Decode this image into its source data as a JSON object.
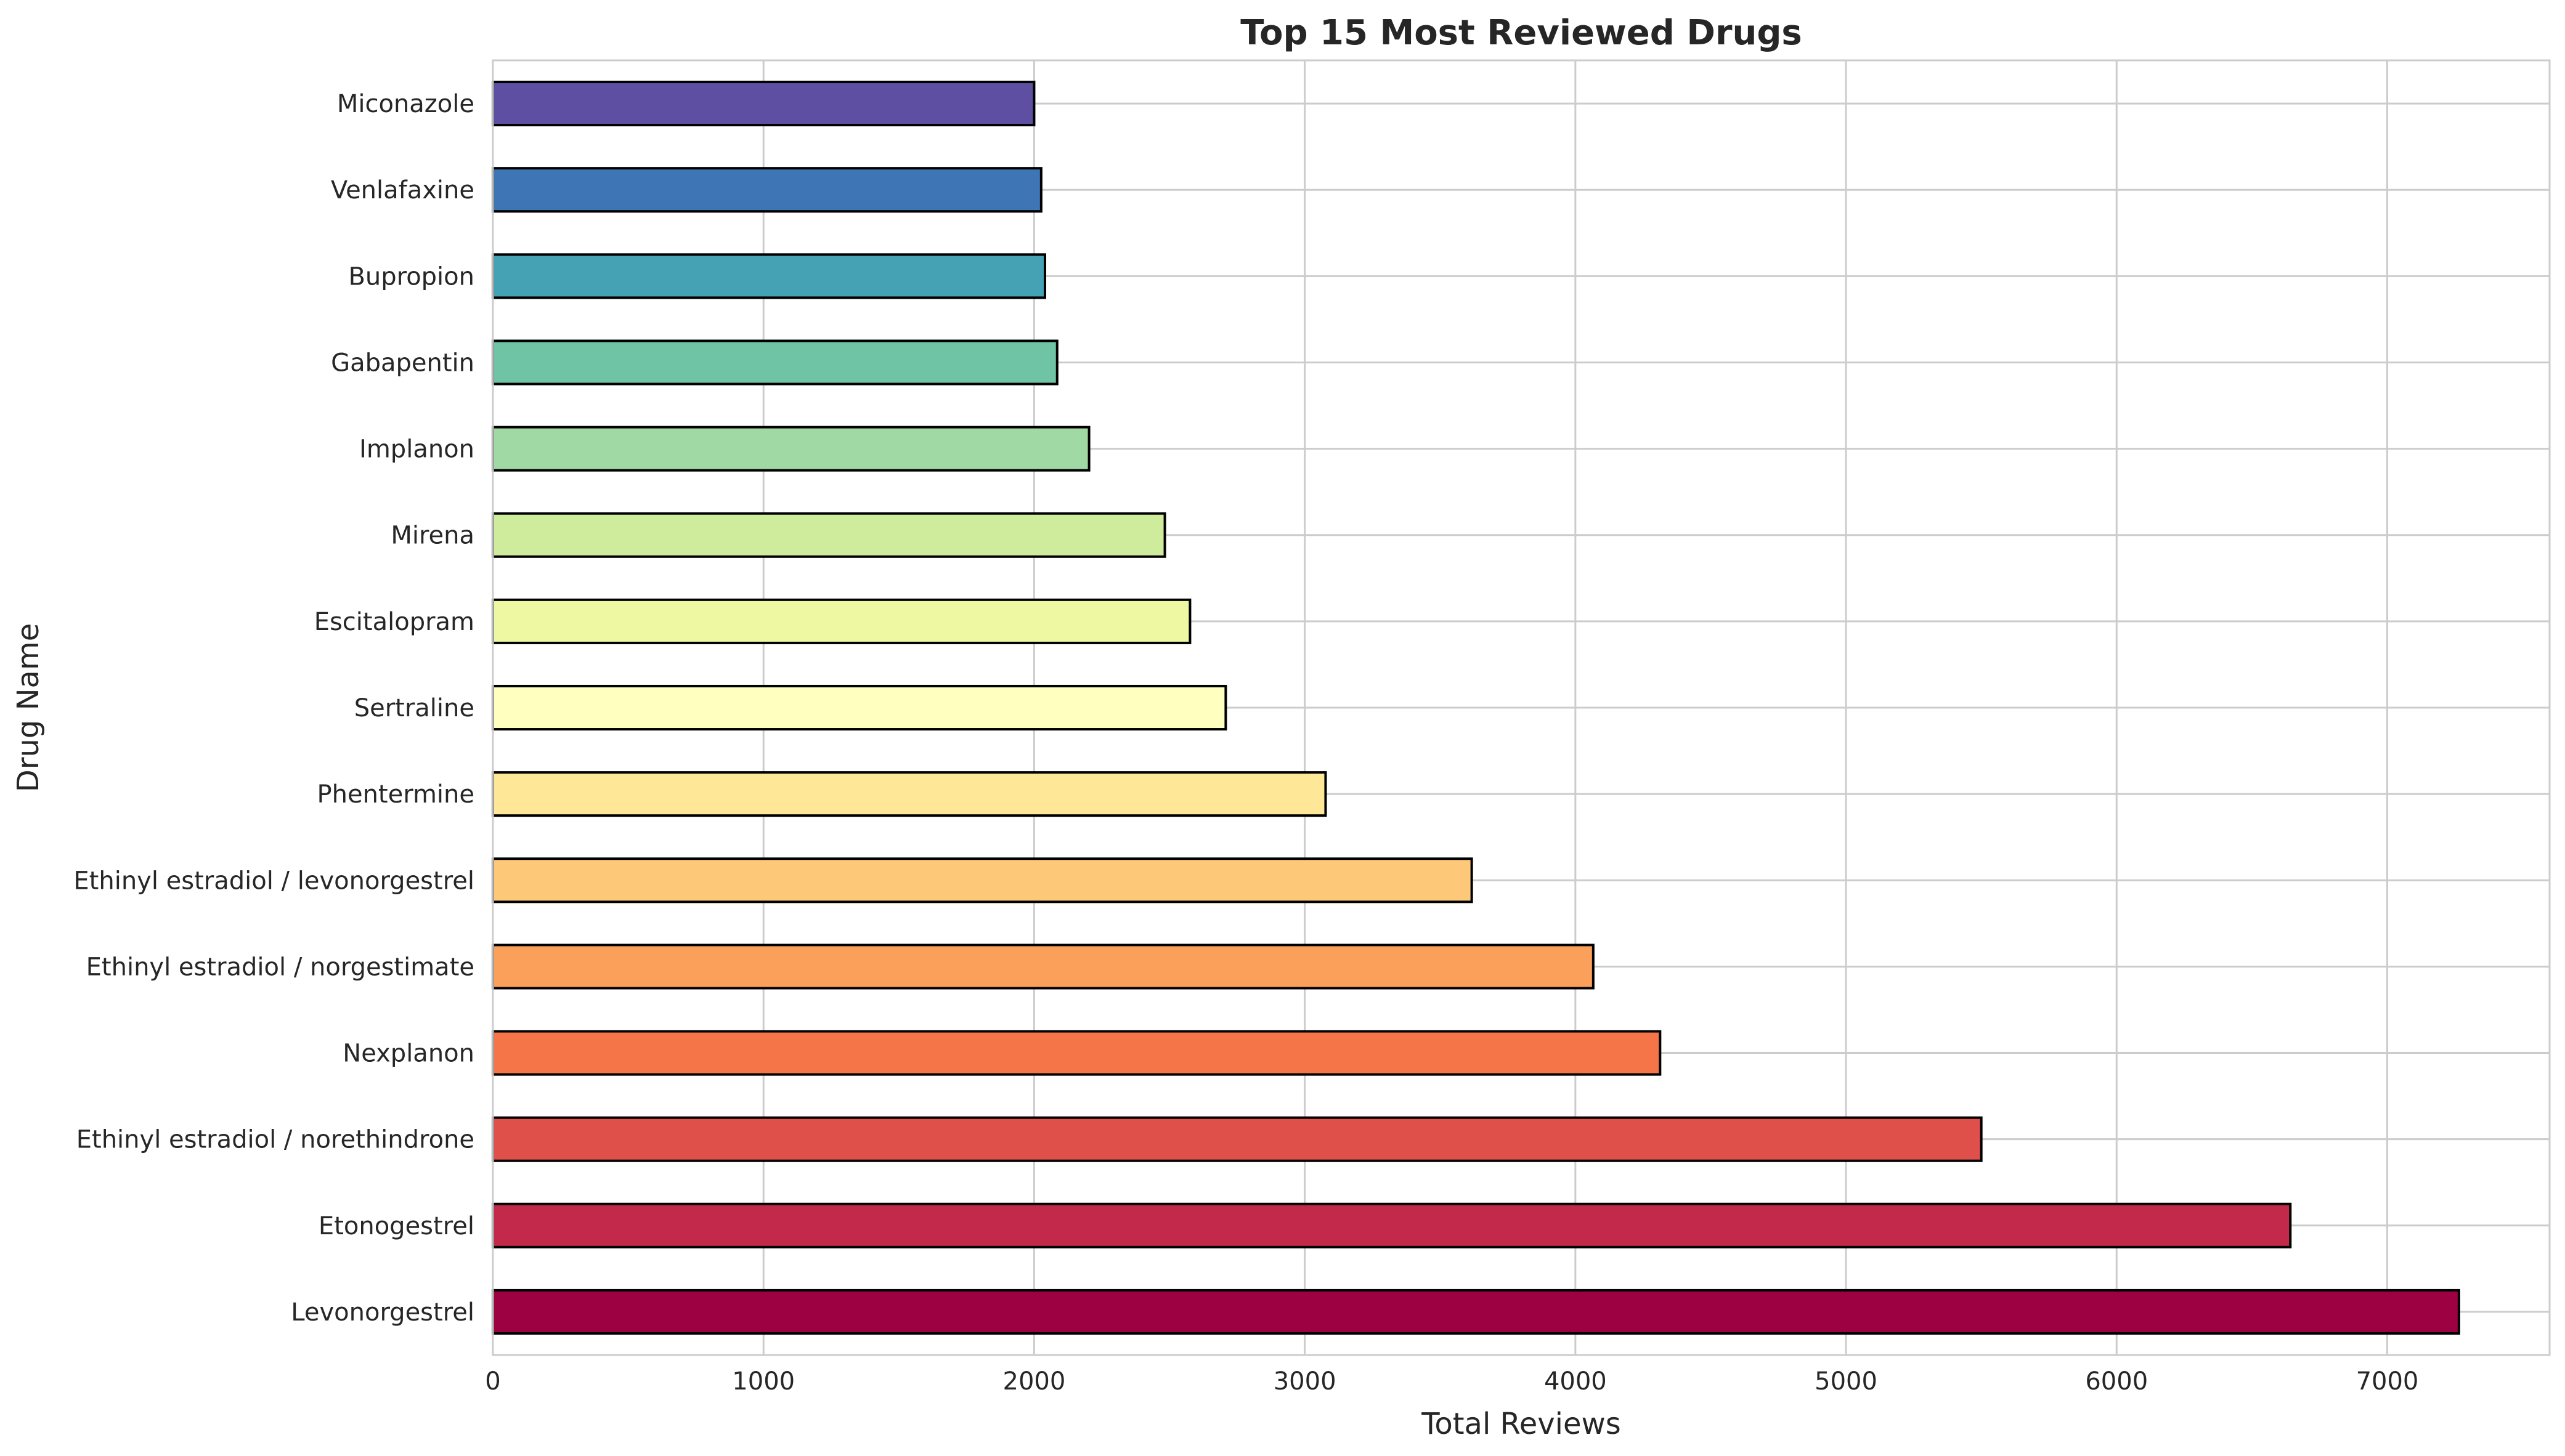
{
  "chart_data": {
    "type": "bar",
    "orientation": "horizontal",
    "title": "Top 15 Most Reviewed Drugs",
    "xlabel": "Total Reviews",
    "ylabel": "Drug Name",
    "xlim": [
      0,
      7600
    ],
    "xticks": [
      0,
      1000,
      2000,
      3000,
      4000,
      5000,
      6000,
      7000
    ],
    "grid": true,
    "categories": [
      "Levonorgestrel",
      "Etonogestrel",
      "Ethinyl estradiol / norethindrone",
      "Nexplanon",
      "Ethinyl estradiol / norgestimate",
      "Ethinyl estradiol / levonorgestrel",
      "Phentermine",
      "Sertraline",
      "Escitalopram",
      "Mirena",
      "Implanon",
      "Gabapentin",
      "Bupropion",
      "Venlafaxine",
      "Miconazole"
    ],
    "values": [
      7265,
      6642,
      5500,
      4313,
      4066,
      3617,
      3077,
      2708,
      2576,
      2483,
      2203,
      2085,
      2040,
      2026,
      2000
    ],
    "colors": [
      "#9e0142",
      "#c2294a",
      "#e0504b",
      "#f57448",
      "#fba05b",
      "#fdc877",
      "#fee796",
      "#ffffbf",
      "#eef8a2",
      "#cfec9d",
      "#a1d9a4",
      "#6ec4a5",
      "#45a2b5",
      "#3e76b5",
      "#5e4fa2"
    ]
  }
}
